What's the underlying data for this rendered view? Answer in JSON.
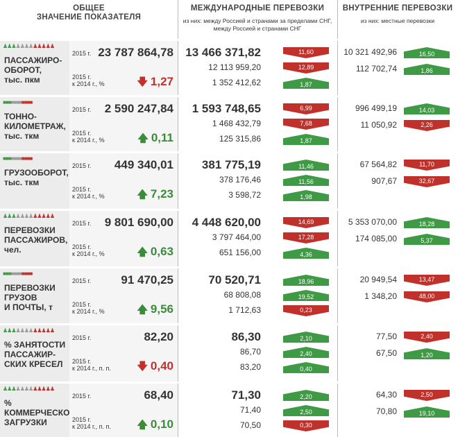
{
  "headers": {
    "total": "ОБЩЕЕ\nЗНАЧЕНИЕ ПОКАЗАТЕЛЯ",
    "intl": "МЕЖДУНАРОДНЫЕ ПЕРЕВОЗКИ",
    "intl_sub": "из них: между Россией и странами за пределами СНГ,\nмежду Россией и  странами  СНГ",
    "dom": "ВНУТРЕННИЕ ПЕРЕВОЗКИ",
    "dom_sub": "из них: местные  перевозки"
  },
  "colors": {
    "up": "#3f9a45",
    "down": "#c0312b",
    "label_bg": "#ececec"
  },
  "rows": [
    {
      "name": "ПАССАЖИРО-\nОБОРОТ,\nтыс. пкм",
      "icons": "♟♟♟♟♟♟♟♟♟♟♟♟",
      "year_label": "2015 г.",
      "total": "23 787 864,78",
      "change_label": "2015 г.\nк 2014 г., %",
      "change": "1,27",
      "change_dir": "down",
      "intl": [
        "13 466 371,82",
        "12 113 959,20",
        "1 352 412,62"
      ],
      "intl_badges": [
        [
          "11,60",
          "down"
        ],
        [
          "12,89",
          "down"
        ],
        [
          "1,87",
          "up"
        ]
      ],
      "dom": [
        "10 321 492,96",
        "112 702,74"
      ],
      "dom_badges": [
        [
          "16,50",
          "up"
        ],
        [
          "1,86",
          "up"
        ]
      ]
    },
    {
      "name": "ТОННО-\nКИЛОМЕТРАЖ,\nтыс. ткм",
      "icons": "■■■■■■■■■■■",
      "year_label": "2015 г.",
      "total": "2 590 247,84",
      "change_label": "2015 г.\nк 2014 г., %",
      "change": "0,11",
      "change_dir": "up",
      "intl": [
        "1 593 748,65",
        "1 468 432,79",
        "125 315,86"
      ],
      "intl_badges": [
        [
          "6,99",
          "down"
        ],
        [
          "7,68",
          "down"
        ],
        [
          "1,87",
          "up"
        ]
      ],
      "dom": [
        "996 499,19",
        "11 050,92"
      ],
      "dom_badges": [
        [
          "14,03",
          "up"
        ],
        [
          "2,26",
          "down"
        ]
      ]
    },
    {
      "name": "ГРУЗООБОРОТ,\nтыс. ткм",
      "icons": "■■■■■■■■■■■",
      "year_label": "2015 г.",
      "total": "449 340,01",
      "change_label": "2015 г.\nк 2014 г., %",
      "change": "7,23",
      "change_dir": "up",
      "intl": [
        "381 775,19",
        "378 176,46",
        "3 598,72"
      ],
      "intl_badges": [
        [
          "11,46",
          "up"
        ],
        [
          "11,56",
          "up"
        ],
        [
          "1,98",
          "up"
        ]
      ],
      "dom": [
        "67 564,82",
        "907,67"
      ],
      "dom_badges": [
        [
          "11,70",
          "down"
        ],
        [
          "32,67",
          "down"
        ]
      ]
    },
    {
      "name": "ПЕРЕВОЗКИ\nПАССАЖИРОВ,\nчел.",
      "icons": "♟♟♟♟♟♟♟♟♟♟♟♟",
      "year_label": "2015 г.",
      "total": "9 801 690,00",
      "change_label": "2015 г.\nк 2014 г., %",
      "change": "0,63",
      "change_dir": "up",
      "intl": [
        "4 448 620,00",
        "3 797 464,00",
        "651 156,00"
      ],
      "intl_badges": [
        [
          "14,69",
          "down"
        ],
        [
          "17,28",
          "down"
        ],
        [
          "4,36",
          "up"
        ]
      ],
      "dom": [
        "5 353 070,00",
        "174 085,00"
      ],
      "dom_badges": [
        [
          "18,28",
          "up"
        ],
        [
          "5,37",
          "up"
        ]
      ]
    },
    {
      "name": "ПЕРЕВОЗКИ\nГРУЗОВ\nИ ПОЧТЫ, т",
      "icons": "■■■■■■■■■■■",
      "year_label": "2015 г.",
      "total": "91 470,25",
      "change_label": "2015 г.\nк 2014 г., %",
      "change": "9,56",
      "change_dir": "up",
      "intl": [
        "70 520,71",
        "68 808,08",
        "1 712,63"
      ],
      "intl_badges": [
        [
          "18,96",
          "up"
        ],
        [
          "19,52",
          "up"
        ],
        [
          "0,23",
          "down"
        ]
      ],
      "dom": [
        "20 949,54",
        "1 348,20"
      ],
      "dom_badges": [
        [
          "13,47",
          "down"
        ],
        [
          "48,00",
          "down"
        ]
      ]
    },
    {
      "name": "% ЗАНЯТОСТИ\nПАССАЖИР-\nСКИХ КРЕСЕЛ",
      "icons": "♟♟♟♟♟♟♟♟♟♟♟♟",
      "year_label": "2015 г.",
      "total": "82,20",
      "change_label": "2015 г.\nк 2014 г., п. п.",
      "change": "0,40",
      "change_dir": "down",
      "intl": [
        "86,30",
        "86,70",
        "83,20"
      ],
      "intl_badges": [
        [
          "2,10",
          "up"
        ],
        [
          "2,40",
          "up"
        ],
        [
          "0,40",
          "up"
        ]
      ],
      "dom": [
        "77,50",
        "67,50"
      ],
      "dom_badges": [
        [
          "2,40",
          "down"
        ],
        [
          "1,20",
          "up"
        ]
      ]
    },
    {
      "name": "%\nКОММЕРЧЕСКОЙ\nЗАГРУЗКИ",
      "icons": "♟♟♟♟♟♟♟♟♟♟♟♟",
      "year_label": "2015 г.",
      "total": "68,40",
      "change_label": "2015 г.\nк 2014 г., п. п.",
      "change": "0,10",
      "change_dir": "up",
      "intl": [
        "71,30",
        "71,40",
        "70,50"
      ],
      "intl_badges": [
        [
          "2,20",
          "up"
        ],
        [
          "2,50",
          "up"
        ],
        [
          "0,30",
          "down"
        ]
      ],
      "dom": [
        "64,30",
        "70,80"
      ],
      "dom_badges": [
        [
          "2,50",
          "down"
        ],
        [
          "19,10",
          "up"
        ]
      ]
    }
  ]
}
